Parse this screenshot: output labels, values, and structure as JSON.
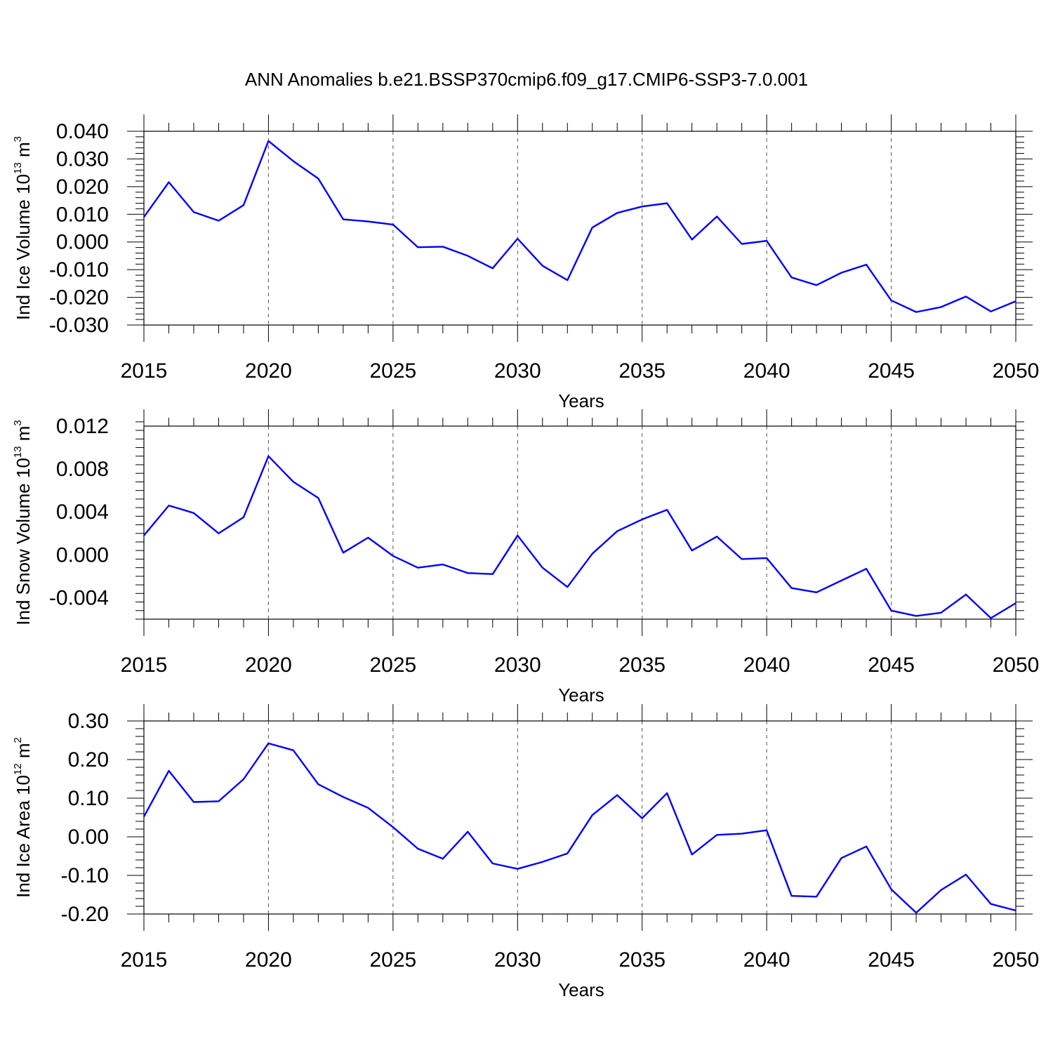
{
  "figure": {
    "title": "ANN Anomalies b.e21.BSSP370cmip6.f09_g17.CMIP6-SSP3-7.0.001"
  },
  "colors": {
    "series": "#0000ff",
    "axis": "#000000",
    "grid": "#555555"
  },
  "chart_data": [
    {
      "type": "line",
      "xlabel": "Years",
      "ylabel": {
        "main": "Ind Ice Volume 10",
        "exp": "13",
        "unit": " m",
        "unit_exp": "3"
      },
      "xlim": [
        2015,
        2050
      ],
      "ylim": [
        -0.03,
        0.04
      ],
      "xticks": [
        2015,
        2020,
        2025,
        2030,
        2035,
        2040,
        2045,
        2050
      ],
      "xtick_labels": [
        "2015",
        "2020",
        "2025",
        "2030",
        "2035",
        "2040",
        "2045",
        "2050"
      ],
      "yticks": [
        -0.03,
        -0.02,
        -0.01,
        0.0,
        0.01,
        0.02,
        0.03,
        0.04
      ],
      "ytick_labels": [
        "-0.030",
        "-0.020",
        "-0.010",
        "0.000",
        "0.010",
        "0.020",
        "0.030",
        "0.040"
      ],
      "grid": "vertical-dashed",
      "series": [
        {
          "x": [
            2015,
            2016,
            2017,
            2018,
            2019,
            2020,
            2021,
            2022,
            2023,
            2024,
            2025,
            2026,
            2027,
            2028,
            2029,
            2030,
            2031,
            2032,
            2033,
            2034,
            2035,
            2036,
            2037,
            2038,
            2039,
            2040,
            2041,
            2042,
            2043,
            2044,
            2045,
            2046,
            2047,
            2048,
            2049,
            2050
          ],
          "values": [
            0.009,
            0.0216,
            0.0108,
            0.0077,
            0.0133,
            0.0365,
            0.0292,
            0.0229,
            0.0082,
            0.0074,
            0.0063,
            -0.0019,
            -0.0017,
            -0.005,
            -0.0095,
            0.0012,
            -0.0086,
            -0.0138,
            0.0052,
            0.0105,
            0.0128,
            0.014,
            0.0009,
            0.0092,
            -0.0007,
            0.0004,
            -0.0128,
            -0.0156,
            -0.0111,
            -0.0082,
            -0.0211,
            -0.0253,
            -0.0235,
            -0.0197,
            -0.0251,
            -0.0214
          ]
        }
      ]
    },
    {
      "type": "line",
      "xlabel": "Years",
      "ylabel": {
        "main": "Ind Snow Volume 10",
        "exp": "13",
        "unit": " m",
        "unit_exp": "3"
      },
      "xlim": [
        2015,
        2050
      ],
      "ylim": [
        -0.006,
        0.012
      ],
      "xticks": [
        2015,
        2020,
        2025,
        2030,
        2035,
        2040,
        2045,
        2050
      ],
      "xtick_labels": [
        "2015",
        "2020",
        "2025",
        "2030",
        "2035",
        "2040",
        "2045",
        "2050"
      ],
      "yticks": [
        -0.004,
        0.0,
        0.004,
        0.008,
        0.012
      ],
      "ytick_labels": [
        "-0.004",
        "0.000",
        "0.004",
        "0.008",
        "0.012"
      ],
      "grid": "vertical-dashed",
      "series": [
        {
          "x": [
            2015,
            2016,
            2017,
            2018,
            2019,
            2020,
            2021,
            2022,
            2023,
            2024,
            2025,
            2026,
            2027,
            2028,
            2029,
            2030,
            2031,
            2032,
            2033,
            2034,
            2035,
            2036,
            2037,
            2038,
            2039,
            2040,
            2041,
            2042,
            2043,
            2044,
            2045,
            2046,
            2047,
            2048,
            2049,
            2050
          ],
          "values": [
            0.0018,
            0.0046,
            0.0039,
            0.002,
            0.0035,
            0.0092,
            0.0068,
            0.0053,
            0.0002,
            0.0016,
            -0.0001,
            -0.0012,
            -0.0009,
            -0.0017,
            -0.0018,
            0.0018,
            -0.0012,
            -0.003,
            0.0001,
            0.0022,
            0.0033,
            0.0042,
            0.0004,
            0.0017,
            -0.0004,
            -0.0003,
            -0.0031,
            -0.0035,
            -0.0024,
            -0.0013,
            -0.0052,
            -0.0057,
            -0.0054,
            -0.0037,
            -0.0059,
            -0.0045
          ]
        }
      ]
    },
    {
      "type": "line",
      "xlabel": "Years",
      "ylabel": {
        "main": "Ind Ice Area 10",
        "exp": "12",
        "unit": " m",
        "unit_exp": "2"
      },
      "xlim": [
        2015,
        2050
      ],
      "ylim": [
        -0.2,
        0.3
      ],
      "xticks": [
        2015,
        2020,
        2025,
        2030,
        2035,
        2040,
        2045,
        2050
      ],
      "xtick_labels": [
        "2015",
        "2020",
        "2025",
        "2030",
        "2035",
        "2040",
        "2045",
        "2050"
      ],
      "yticks": [
        -0.2,
        -0.1,
        0.0,
        0.1,
        0.2,
        0.3
      ],
      "ytick_labels": [
        "-0.20",
        "-0.10",
        "0.00",
        "0.10",
        "0.20",
        "0.30"
      ],
      "grid": "vertical-dashed",
      "series": [
        {
          "x": [
            2015,
            2016,
            2017,
            2018,
            2019,
            2020,
            2021,
            2022,
            2023,
            2024,
            2025,
            2026,
            2027,
            2028,
            2029,
            2030,
            2031,
            2032,
            2033,
            2034,
            2035,
            2036,
            2037,
            2038,
            2039,
            2040,
            2041,
            2042,
            2043,
            2044,
            2045,
            2046,
            2047,
            2048,
            2049,
            2050
          ],
          "values": [
            0.052,
            0.171,
            0.09,
            0.092,
            0.149,
            0.242,
            0.224,
            0.136,
            0.103,
            0.075,
            0.025,
            -0.031,
            -0.057,
            0.013,
            -0.069,
            -0.083,
            -0.065,
            -0.043,
            0.056,
            0.108,
            0.048,
            0.113,
            -0.046,
            0.005,
            0.008,
            0.017,
            -0.153,
            -0.155,
            -0.055,
            -0.025,
            -0.136,
            -0.197,
            -0.138,
            -0.098,
            -0.174,
            -0.191
          ]
        }
      ]
    }
  ]
}
